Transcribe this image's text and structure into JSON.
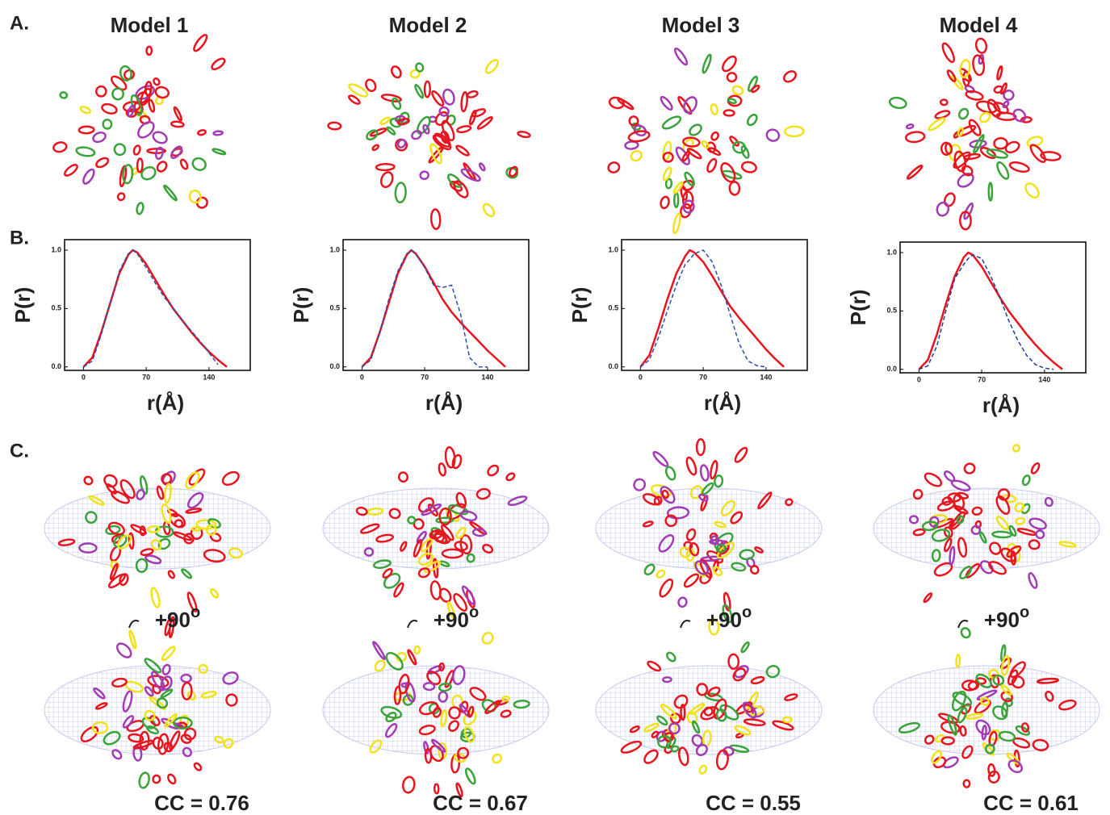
{
  "figure": {
    "panel_labels": [
      "A.",
      "B.",
      "C."
    ],
    "models": [
      {
        "title": "Model 1",
        "rotation": "+90",
        "rotation_unit": "o",
        "cc": "CC = 0.76"
      },
      {
        "title": "Model 2",
        "rotation": "+90",
        "rotation_unit": "o",
        "cc": "CC = 0.67"
      },
      {
        "title": "Model 3",
        "rotation": "+90",
        "rotation_unit": "o",
        "cc": "CC = 0.55"
      },
      {
        "title": "Model 4",
        "rotation": "+90",
        "rotation_unit": "o",
        "cc": "CC = 0.61"
      }
    ]
  },
  "chart_data": [
    {
      "type": "line",
      "x_label": "r(Å)",
      "y_label": "P(r)",
      "x": [
        0,
        10,
        20,
        30,
        40,
        50,
        55,
        60,
        70,
        80,
        90,
        100,
        110,
        120,
        130,
        140,
        150,
        160
      ],
      "xlim": [
        -21,
        186
      ],
      "ylim": [
        -0.03,
        1.09
      ],
      "xticks": [
        0,
        70,
        140
      ],
      "yticks": [
        {
          "value": 0,
          "label": "0.0"
        },
        {
          "value": 0.5,
          "label": "0.5"
        },
        {
          "value": 1,
          "label": "1.0"
        }
      ],
      "series": [
        {
          "color": "#e8141e",
          "dashed": false,
          "values": [
            0,
            0.08,
            0.3,
            0.55,
            0.8,
            0.96,
            1.0,
            0.98,
            0.88,
            0.75,
            0.62,
            0.5,
            0.4,
            0.3,
            0.21,
            0.13,
            0.06,
            0.0
          ]
        },
        {
          "color": "#2a4fb0",
          "dashed": true,
          "values": [
            0,
            0.05,
            0.28,
            0.55,
            0.82,
            0.97,
            1.0,
            0.97,
            0.85,
            0.72,
            0.6,
            0.5,
            0.4,
            0.31,
            0.22,
            0.12,
            0.02,
            null
          ]
        }
      ]
    },
    {
      "type": "line",
      "x_label": "r(Å)",
      "y_label": "P(r)",
      "x": [
        0,
        10,
        20,
        30,
        40,
        50,
        55,
        60,
        70,
        80,
        90,
        100,
        110,
        120,
        130,
        140,
        150,
        160
      ],
      "xlim": [
        -21,
        186
      ],
      "ylim": [
        -0.03,
        1.09
      ],
      "xticks": [
        0,
        70,
        140
      ],
      "yticks": [
        {
          "value": 0,
          "label": "0.0"
        },
        {
          "value": 0.5,
          "label": "0.5"
        },
        {
          "value": 1,
          "label": "1.0"
        }
      ],
      "series": [
        {
          "color": "#e8141e",
          "dashed": false,
          "values": [
            0,
            0.08,
            0.3,
            0.55,
            0.8,
            0.96,
            1.0,
            0.97,
            0.86,
            0.72,
            0.58,
            0.47,
            0.38,
            0.3,
            0.22,
            0.14,
            0.07,
            0.0
          ]
        },
        {
          "color": "#2a4fb0",
          "dashed": true,
          "values": [
            0,
            0.06,
            0.3,
            0.58,
            0.82,
            0.97,
            1.0,
            0.97,
            0.85,
            0.7,
            0.68,
            0.7,
            0.45,
            0.08,
            0.0,
            0.0,
            null,
            null
          ]
        }
      ]
    },
    {
      "type": "line",
      "x_label": "r(Å)",
      "y_label": "P(r)",
      "x": [
        0,
        10,
        20,
        30,
        40,
        50,
        55,
        60,
        70,
        80,
        90,
        100,
        110,
        120,
        130,
        140,
        150,
        160
      ],
      "xlim": [
        -21,
        186
      ],
      "ylim": [
        -0.03,
        1.09
      ],
      "xticks": [
        0,
        70,
        140
      ],
      "yticks": [
        {
          "value": 0,
          "label": "0.0"
        },
        {
          "value": 0.5,
          "label": "0.5"
        },
        {
          "value": 1,
          "label": "1.0"
        }
      ],
      "series": [
        {
          "color": "#e8141e",
          "dashed": false,
          "values": [
            0,
            0.1,
            0.33,
            0.58,
            0.8,
            0.95,
            1.0,
            0.98,
            0.9,
            0.78,
            0.65,
            0.52,
            0.42,
            0.33,
            0.24,
            0.15,
            0.07,
            0.0
          ]
        },
        {
          "color": "#2a4fb0",
          "dashed": true,
          "values": [
            0,
            0.06,
            0.25,
            0.48,
            0.7,
            0.88,
            0.92,
            0.97,
            1.0,
            0.9,
            0.7,
            0.45,
            0.2,
            0.05,
            0.01,
            0,
            null,
            null
          ]
        }
      ]
    },
    {
      "type": "line",
      "x_label": "r(Å)",
      "y_label": "P(r)",
      "x": [
        0,
        10,
        20,
        30,
        40,
        50,
        55,
        60,
        70,
        80,
        90,
        100,
        110,
        120,
        130,
        140,
        150,
        160
      ],
      "xlim": [
        -21,
        186
      ],
      "ylim": [
        -0.03,
        1.09
      ],
      "xticks": [
        0,
        70,
        140
      ],
      "yticks": [
        {
          "value": 0,
          "label": "0.0"
        },
        {
          "value": 0.5,
          "label": "0.5"
        },
        {
          "value": 1,
          "label": "1.0"
        }
      ],
      "series": [
        {
          "color": "#e8141e",
          "dashed": false,
          "values": [
            0,
            0.08,
            0.3,
            0.56,
            0.8,
            0.96,
            1.0,
            0.98,
            0.88,
            0.75,
            0.62,
            0.5,
            0.4,
            0.3,
            0.21,
            0.13,
            0.06,
            0.0
          ]
        },
        {
          "color": "#1f3f9a",
          "dashed": true,
          "values": [
            0,
            0.03,
            0.2,
            0.5,
            0.78,
            0.9,
            0.95,
            0.98,
            0.95,
            0.8,
            0.62,
            0.42,
            0.25,
            0.12,
            0.04,
            0.01,
            0.0,
            null
          ]
        }
      ]
    }
  ]
}
